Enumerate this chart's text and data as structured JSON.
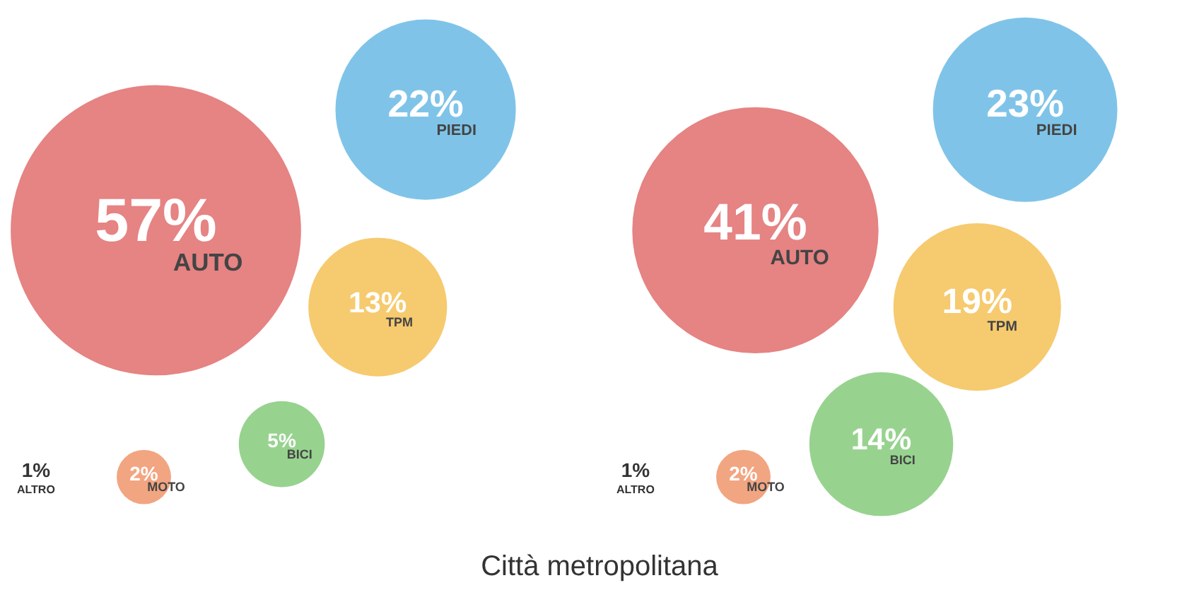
{
  "chart_data": [
    {
      "type": "other",
      "categories": [
        "AUTO",
        "PIEDI",
        "TPM",
        "BICI",
        "MOTO",
        "ALTRO"
      ],
      "values": [
        57,
        22,
        13,
        5,
        2,
        1
      ],
      "value_labels": [
        "57%",
        "22%",
        "13%",
        "5%",
        "2%",
        "1%"
      ],
      "colors": [
        "#e68383",
        "#7fc4e8",
        "#f6ca6e",
        "#97d38f",
        "#f2a581",
        null
      ]
    },
    {
      "type": "other",
      "categories": [
        "AUTO",
        "PIEDI",
        "TPM",
        "BICI",
        "MOTO",
        "ALTRO"
      ],
      "values": [
        41,
        23,
        19,
        14,
        2,
        1
      ],
      "value_labels": [
        "41%",
        "23%",
        "19%",
        "14%",
        "2%",
        "1%"
      ],
      "colors": [
        "#e68383",
        "#7fc4e8",
        "#f6ca6e",
        "#97d38f",
        "#f2a581",
        null
      ],
      "annotations": [
        "Città metropolitana"
      ]
    }
  ]
}
